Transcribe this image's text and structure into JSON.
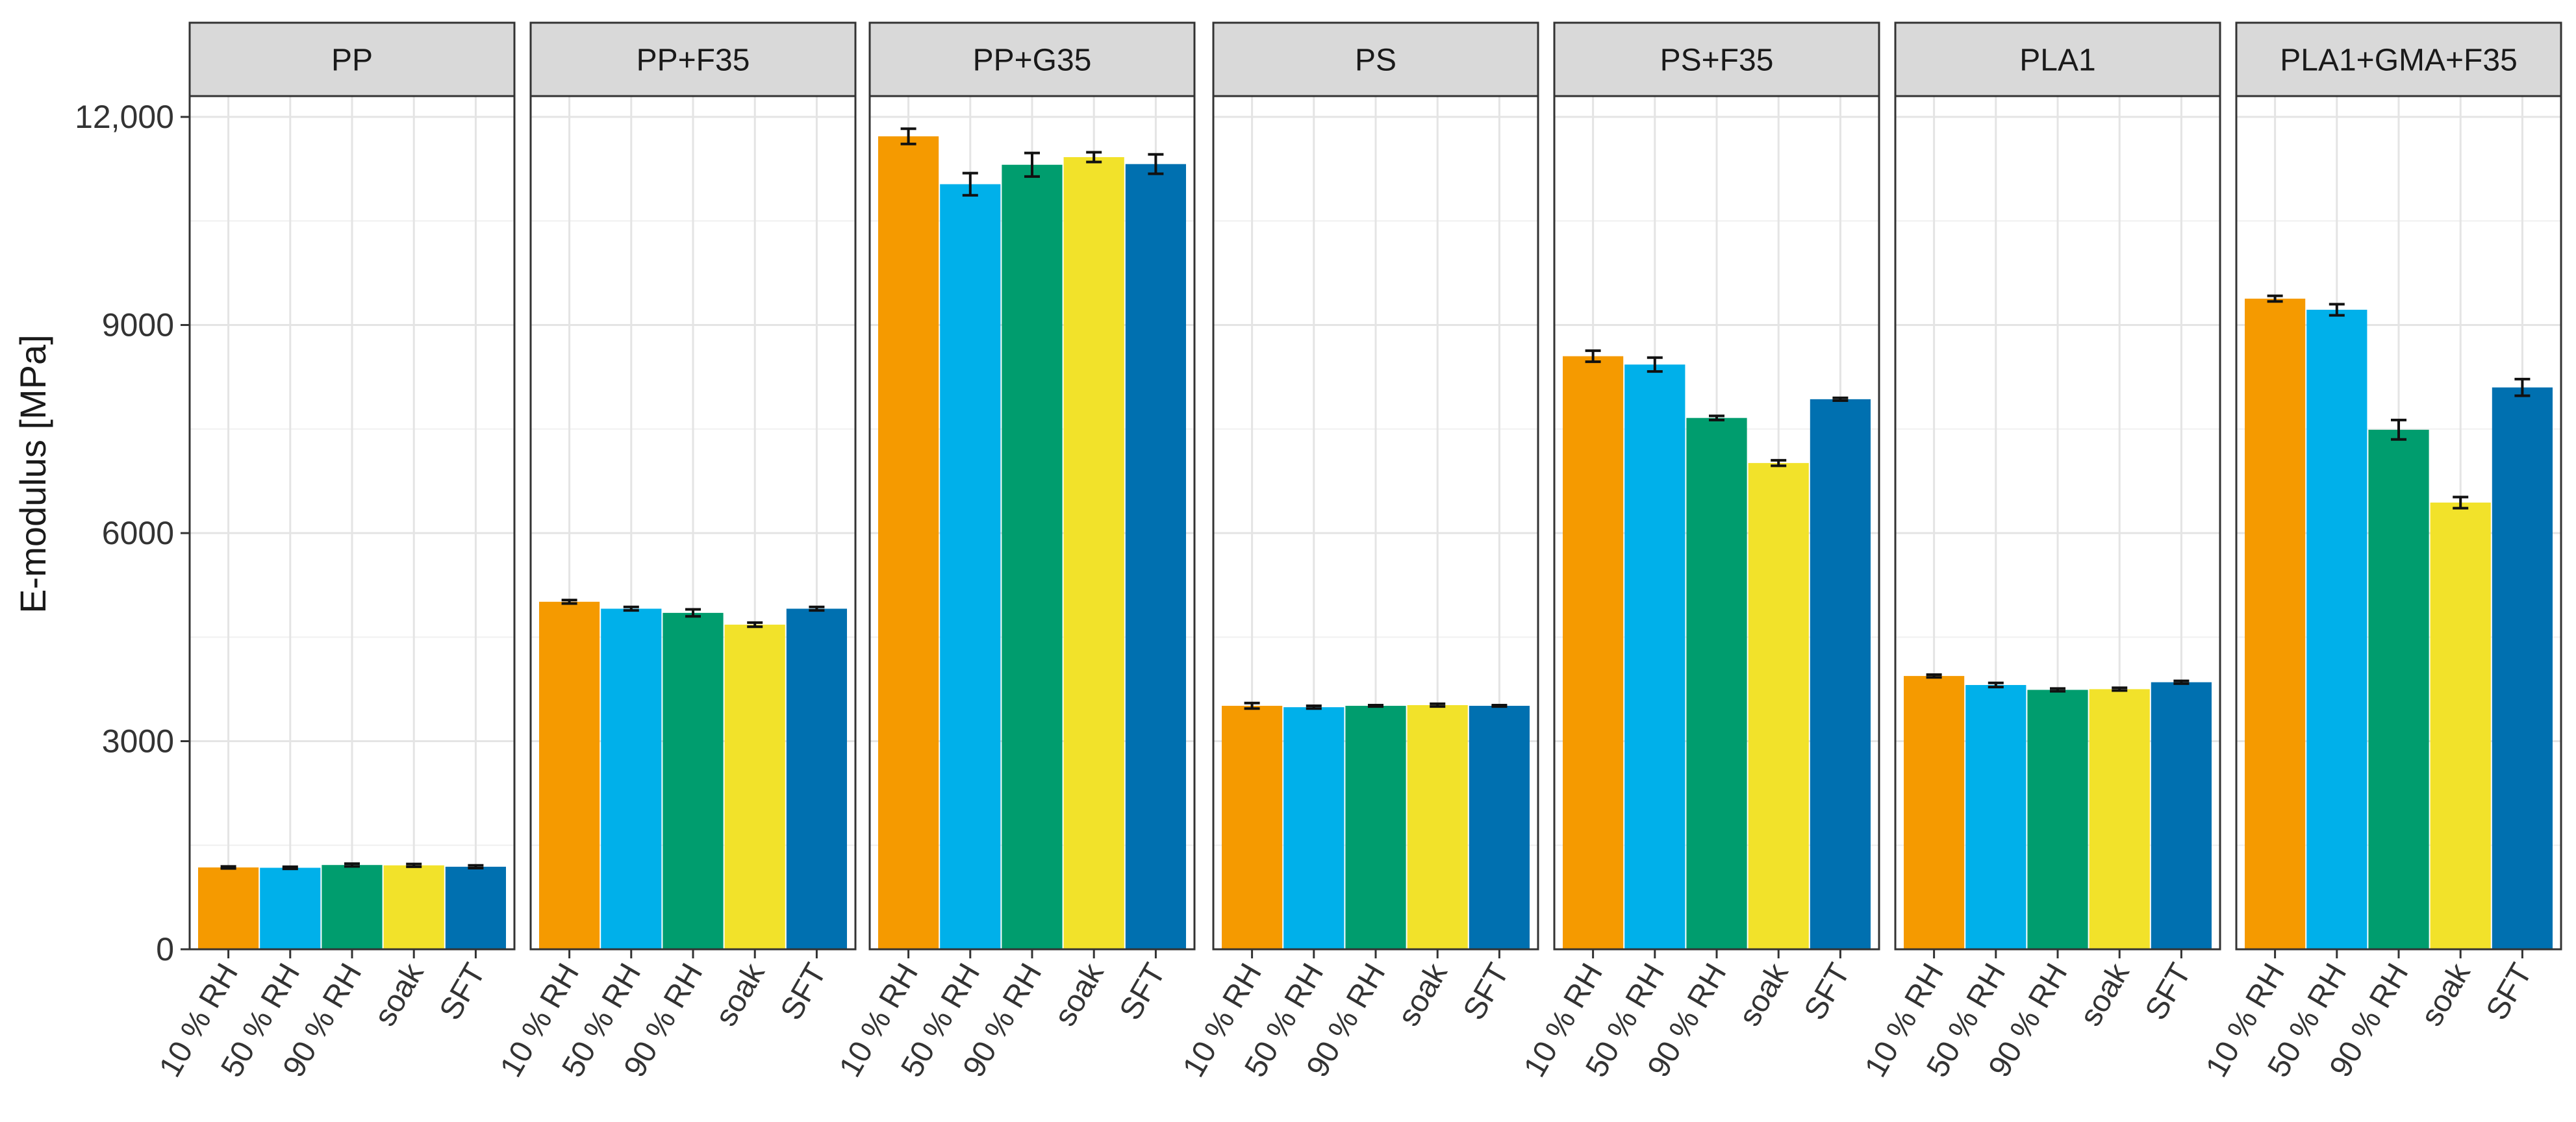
{
  "chart_data": {
    "type": "bar",
    "ylabel": "E-modulus [MPa]",
    "xlabel": "",
    "ylim": [
      0,
      12300
    ],
    "y_ticks": [
      0,
      3000,
      6000,
      9000,
      12000
    ],
    "y_tick_labels": [
      "0",
      "3000",
      "6000",
      "9000",
      "12,000"
    ],
    "grid": true,
    "legend": "none",
    "categories": [
      "10 % RH",
      "50 % RH",
      "90 % RH",
      "soak",
      "SFT"
    ],
    "colors": {
      "10 % RH": "#F59A00",
      "50 % RH": "#00B0EA",
      "90 % RH": "#009D6E",
      "soak": "#F2E22A",
      "SFT": "#0070B0"
    },
    "panels": [
      {
        "name": "PP",
        "values": [
          1180,
          1175,
          1215,
          1210,
          1190
        ],
        "errors": [
          15,
          15,
          20,
          20,
          20
        ]
      },
      {
        "name": "PP+F35",
        "values": [
          5010,
          4910,
          4850,
          4680,
          4910
        ],
        "errors": [
          25,
          25,
          50,
          30,
          25
        ]
      },
      {
        "name": "PP+G35",
        "values": [
          11720,
          11030,
          11310,
          11420,
          11320
        ],
        "errors": [
          110,
          160,
          170,
          70,
          140
        ]
      },
      {
        "name": "PS",
        "values": [
          3510,
          3490,
          3510,
          3520,
          3510
        ],
        "errors": [
          40,
          20,
          10,
          20,
          10
        ]
      },
      {
        "name": "PS+F35",
        "values": [
          8550,
          8430,
          7660,
          7010,
          7930
        ],
        "errors": [
          80,
          100,
          30,
          40,
          20
        ]
      },
      {
        "name": "PLA1",
        "values": [
          3940,
          3810,
          3740,
          3750,
          3850
        ],
        "errors": [
          20,
          30,
          20,
          20,
          20
        ]
      },
      {
        "name": "PLA1+GMA+F35",
        "values": [
          9380,
          9220,
          7490,
          6440,
          8100
        ],
        "errors": [
          40,
          80,
          140,
          80,
          120
        ]
      }
    ]
  }
}
